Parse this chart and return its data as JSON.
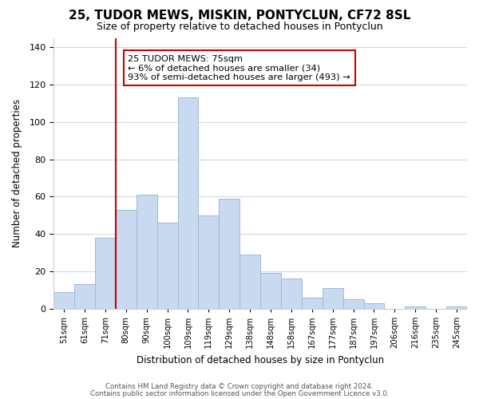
{
  "title": "25, TUDOR MEWS, MISKIN, PONTYCLUN, CF72 8SL",
  "subtitle": "Size of property relative to detached houses in Pontyclun",
  "xlabel": "Distribution of detached houses by size in Pontyclun",
  "ylabel": "Number of detached properties",
  "bar_labels": [
    "51sqm",
    "61sqm",
    "71sqm",
    "80sqm",
    "90sqm",
    "100sqm",
    "109sqm",
    "119sqm",
    "129sqm",
    "138sqm",
    "148sqm",
    "158sqm",
    "167sqm",
    "177sqm",
    "187sqm",
    "197sqm",
    "206sqm",
    "216sqm",
    "235sqm",
    "245sqm"
  ],
  "bar_heights": [
    9,
    13,
    38,
    53,
    61,
    46,
    113,
    50,
    59,
    29,
    19,
    16,
    6,
    11,
    5,
    3,
    0,
    1,
    0,
    1
  ],
  "bar_color": "#c8d9f0",
  "bar_edge_color": "#a0b8d8",
  "reference_line_color": "#cc0000",
  "annotation_title": "25 TUDOR MEWS: 75sqm",
  "annotation_line1": "← 6% of detached houses are smaller (34)",
  "annotation_line2": "93% of semi-detached houses are larger (493) →",
  "annotation_box_color": "#ffffff",
  "annotation_box_edge_color": "#cc0000",
  "ylim": [
    0,
    145
  ],
  "yticks": [
    0,
    20,
    40,
    60,
    80,
    100,
    120,
    140
  ],
  "footer1": "Contains HM Land Registry data © Crown copyright and database right 2024.",
  "footer2": "Contains public sector information licensed under the Open Government Licence v3.0.",
  "background_color": "#ffffff",
  "grid_color": "#d0d8e8"
}
